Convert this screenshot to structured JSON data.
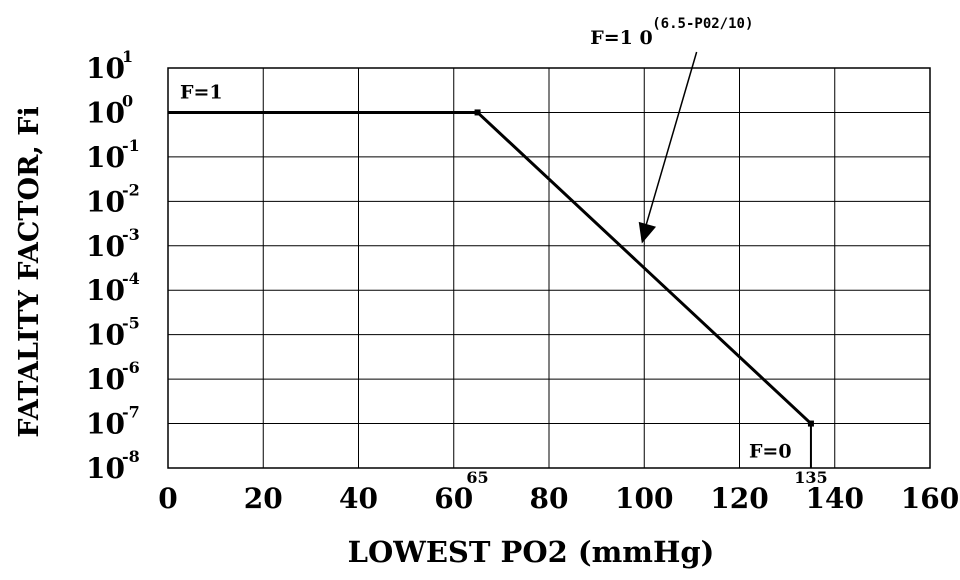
{
  "chart_data": {
    "type": "line",
    "title": "",
    "xlabel": "LOWEST PO2 (mmHg)",
    "ylabel": "FATALITY FACTOR, Fi",
    "xlim": [
      0,
      160
    ],
    "ylim_log10": [
      -8,
      1
    ],
    "yscale": "log",
    "grid": true,
    "x_ticks": [
      "0",
      "20",
      "40",
      "60",
      "80",
      "100",
      "120",
      "140",
      "160"
    ],
    "y_ticks": [
      {
        "base": "10",
        "exp": "1"
      },
      {
        "base": "10",
        "exp": "0"
      },
      {
        "base": "10",
        "exp": "-1"
      },
      {
        "base": "10",
        "exp": "-2"
      },
      {
        "base": "10",
        "exp": "-3"
      },
      {
        "base": "10",
        "exp": "-4"
      },
      {
        "base": "10",
        "exp": "-5"
      },
      {
        "base": "10",
        "exp": "-6"
      },
      {
        "base": "10",
        "exp": "-7"
      },
      {
        "base": "10",
        "exp": "-8"
      }
    ],
    "series": [
      {
        "x": [
          0,
          65,
          135
        ],
        "y": [
          1,
          1,
          1e-07
        ],
        "color": "#000000"
      }
    ],
    "drop_line": {
      "x": 135,
      "y_from": 1e-07,
      "y_to": 1e-08
    },
    "point_labels": [
      {
        "text": "65",
        "x": 65
      },
      {
        "text": "135",
        "x": 135
      }
    ],
    "annotations": {
      "f1": "F=1",
      "f0": "F=0",
      "formula_base": "F=1 0",
      "formula_exp": "(6.5-P02/10)"
    }
  }
}
